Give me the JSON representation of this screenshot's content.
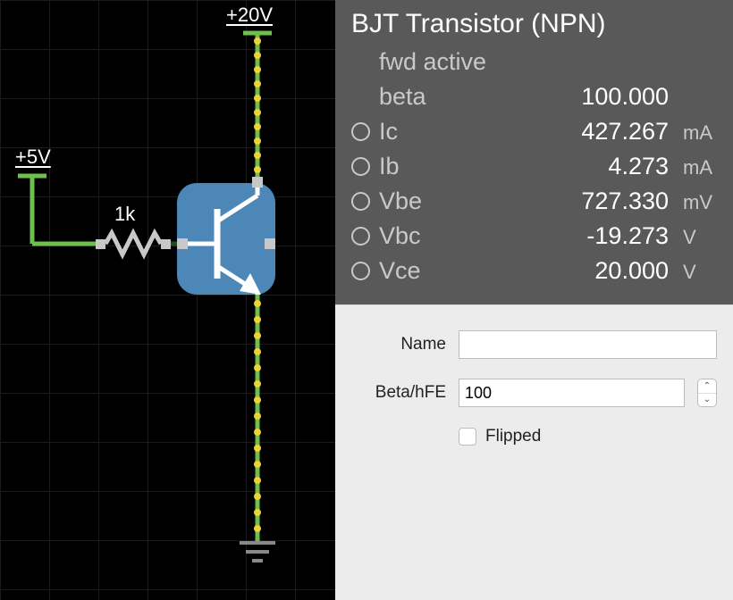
{
  "canvas": {
    "bg": "#000000",
    "grid_color": "#1a1a1a",
    "grid_spacing": 55,
    "labels": {
      "top_supply": "+20V",
      "left_supply": "+5V",
      "resistor": "1k"
    },
    "colors": {
      "wire_green": "#6fbf4d",
      "current_dot": "#e8d23a",
      "transistor_body": "#4d87b8",
      "transistor_stroke": "#ffffff",
      "terminal_fill": "#c8c8c8",
      "ground": "#888888"
    }
  },
  "info": {
    "title": "BJT Transistor (NPN)",
    "state": "fwd active",
    "rows": [
      {
        "key": "beta",
        "label": "beta",
        "value": "100.000",
        "unit": "",
        "selectable": false
      },
      {
        "key": "ic",
        "label": "Ic",
        "value": "427.267",
        "unit": "mA",
        "selectable": true
      },
      {
        "key": "ib",
        "label": "Ib",
        "value": "4.273",
        "unit": "mA",
        "selectable": true
      },
      {
        "key": "vbe",
        "label": "Vbe",
        "value": "727.330",
        "unit": "mV",
        "selectable": true
      },
      {
        "key": "vbc",
        "label": "Vbc",
        "value": "-19.273",
        "unit": "V",
        "selectable": true
      },
      {
        "key": "vce",
        "label": "Vce",
        "value": "20.000",
        "unit": "V",
        "selectable": true
      }
    ]
  },
  "form": {
    "name_label": "Name",
    "name_value": "",
    "beta_label": "Beta/hFE",
    "beta_value": "100",
    "flipped_label": "Flipped",
    "flipped": false
  }
}
